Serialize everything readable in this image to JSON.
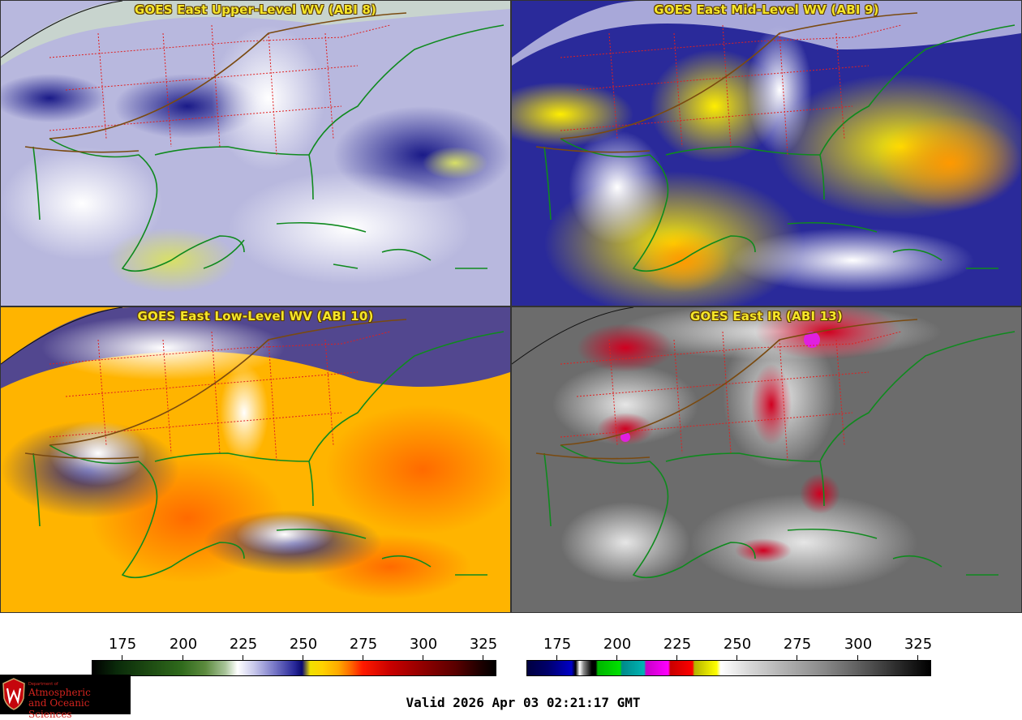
{
  "panels": [
    {
      "id": "p1",
      "title": "GOES East Upper-Level WV (ABI 8)",
      "style": "wv-upper"
    },
    {
      "id": "p2",
      "title": "GOES East Mid-Level WV (ABI 9)",
      "style": "wv-mid"
    },
    {
      "id": "p3",
      "title": "GOES East Low-Level WV (ABI 10)",
      "style": "wv-low"
    },
    {
      "id": "p4",
      "title": "GOES East IR (ABI 13)",
      "style": "ir"
    }
  ],
  "colorbars": {
    "wv": {
      "ticks": [
        "175",
        "200",
        "225",
        "250",
        "275",
        "300",
        "325"
      ]
    },
    "ir": {
      "ticks": [
        "175",
        "200",
        "225",
        "250",
        "275",
        "300",
        "325"
      ]
    }
  },
  "logo": {
    "department": "Department of",
    "line1": "Atmospheric",
    "line2": "and Oceanic Sciences",
    "icon": "uw-crest-icon"
  },
  "valid_time": "Valid 2026 Apr 03 02:21:17 GMT",
  "colors": {
    "title_text": "#f5e62a",
    "coastline": "#0f8a1e",
    "state_borders": "#e02020",
    "country_borders": "#7a4a10"
  }
}
